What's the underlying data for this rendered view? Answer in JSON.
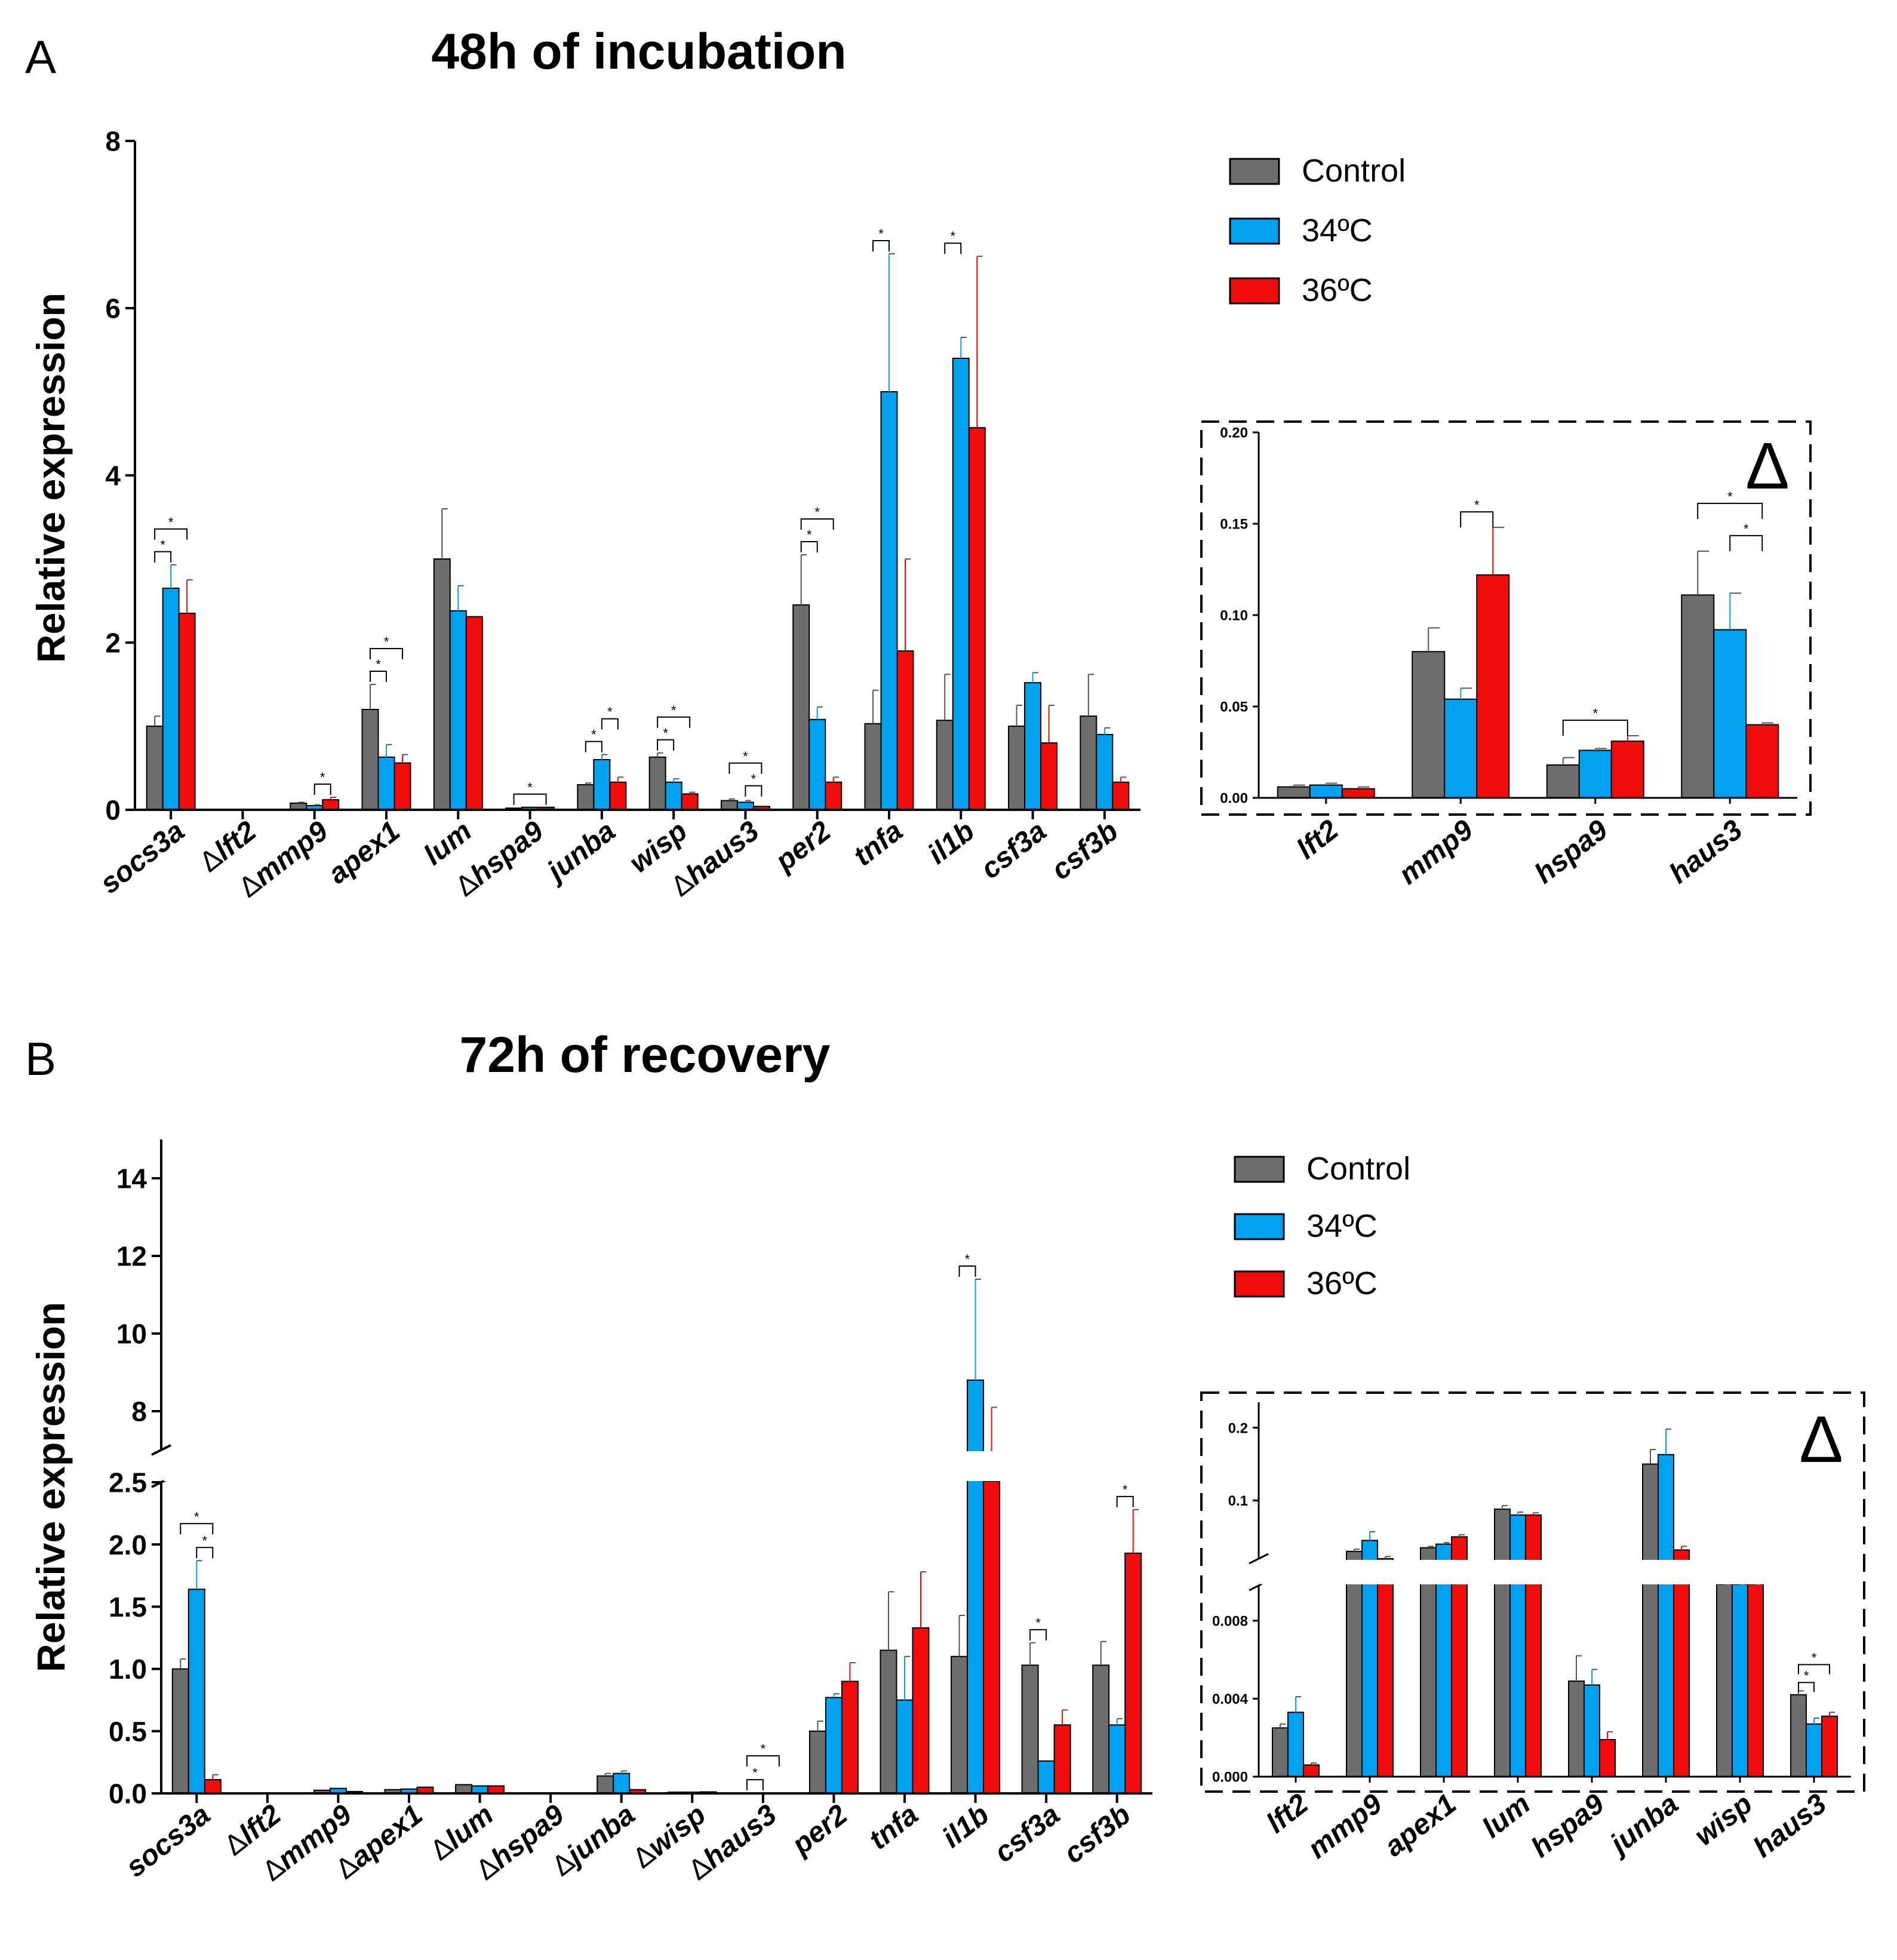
{
  "colors": {
    "control": "#6d6d6d",
    "c34": "#00a2f0",
    "c36": "#f10c0c",
    "axis": "#000000"
  },
  "legend": [
    {
      "key": "control",
      "label": "Control"
    },
    {
      "key": "c34",
      "label": "34ºC"
    },
    {
      "key": "c36",
      "label": "36ºC"
    }
  ],
  "chart_data": [
    {
      "id": "A_main",
      "panel": "A",
      "title": "48h of incubation",
      "type": "bar",
      "ylabel": "Relative expression",
      "ylim": [
        0,
        8
      ],
      "yticks": [
        0,
        2,
        4,
        6,
        8
      ],
      "categories": [
        {
          "label": "socs3a",
          "delta": false
        },
        {
          "label": "lft2",
          "delta": true
        },
        {
          "label": "mmp9",
          "delta": true
        },
        {
          "label": "apex1",
          "delta": false
        },
        {
          "label": "lum",
          "delta": false
        },
        {
          "label": "hspa9",
          "delta": true
        },
        {
          "label": "junba",
          "delta": false
        },
        {
          "label": "wisp",
          "delta": false
        },
        {
          "label": "haus3",
          "delta": true
        },
        {
          "label": "per2",
          "delta": false
        },
        {
          "label": "tnfa",
          "delta": false
        },
        {
          "label": "il1b",
          "delta": false
        },
        {
          "label": "csf3a",
          "delta": false
        },
        {
          "label": "csf3b",
          "delta": false
        }
      ],
      "series": [
        {
          "name": "Control",
          "key": "control",
          "values": [
            1.0,
            0.006,
            0.08,
            1.2,
            3.0,
            0.02,
            0.3,
            0.63,
            0.11,
            2.45,
            1.03,
            1.07,
            1.0,
            1.12
          ],
          "errors": [
            0.12,
            0.0,
            0.01,
            0.3,
            0.6,
            0.0,
            0.02,
            0.05,
            0.02,
            0.6,
            0.4,
            0.55,
            0.25,
            0.5
          ]
        },
        {
          "name": "34ºC",
          "key": "c34",
          "values": [
            2.65,
            0.007,
            0.05,
            0.63,
            2.38,
            0.03,
            0.6,
            0.33,
            0.09,
            1.08,
            5.0,
            5.4,
            1.52,
            0.9
          ],
          "errors": [
            0.28,
            0.0,
            0.01,
            0.15,
            0.3,
            0.0,
            0.06,
            0.04,
            0.02,
            0.15,
            1.65,
            0.25,
            0.12,
            0.08
          ]
        },
        {
          "name": "36ºC",
          "key": "c36",
          "values": [
            2.35,
            0.005,
            0.12,
            0.56,
            2.31,
            0.03,
            0.33,
            0.19,
            0.04,
            0.33,
            1.9,
            4.57,
            0.8,
            0.33
          ],
          "errors": [
            0.4,
            0.0,
            0.03,
            0.1,
            0.0,
            0.0,
            0.06,
            0.02,
            0.0,
            0.06,
            1.1,
            2.05,
            0.45,
            0.06
          ]
        }
      ],
      "significance": [
        {
          "cat": 0,
          "pair": "control-c34",
          "level": 1
        },
        {
          "cat": 0,
          "pair": "control-c36",
          "level": 2
        },
        {
          "cat": 2,
          "pair": "c34-c36",
          "level": 1
        },
        {
          "cat": 3,
          "pair": "control-c34",
          "level": 1
        },
        {
          "cat": 3,
          "pair": "control-c36",
          "level": 2
        },
        {
          "cat": 5,
          "pair": "control-c36",
          "level": 1
        },
        {
          "cat": 6,
          "pair": "control-c34",
          "level": 1
        },
        {
          "cat": 6,
          "pair": "c34-c36",
          "level": 2
        },
        {
          "cat": 7,
          "pair": "control-c34",
          "level": 1
        },
        {
          "cat": 7,
          "pair": "control-c36",
          "level": 2
        },
        {
          "cat": 8,
          "pair": "c34-c36",
          "level": 1
        },
        {
          "cat": 8,
          "pair": "control-c36",
          "level": 2
        },
        {
          "cat": 9,
          "pair": "control-c34",
          "level": 1
        },
        {
          "cat": 9,
          "pair": "control-c36",
          "level": 2
        },
        {
          "cat": 10,
          "pair": "control-c34",
          "level": 1
        },
        {
          "cat": 11,
          "pair": "control-c34",
          "level": 1
        }
      ],
      "sig_symbol": "*"
    },
    {
      "id": "A_inset",
      "panel": "A",
      "type": "bar",
      "delta_symbol": "Δ",
      "ylim": [
        0,
        0.2
      ],
      "yticks": [
        "0.00",
        "0.05",
        "0.10",
        "0.15",
        "0.20"
      ],
      "categories": [
        "lft2",
        "mmp9",
        "hspa9",
        "haus3"
      ],
      "series": [
        {
          "name": "Control",
          "key": "control",
          "values": [
            0.006,
            0.08,
            0.018,
            0.111
          ],
          "errors": [
            0.001,
            0.013,
            0.004,
            0.024
          ]
        },
        {
          "name": "34ºC",
          "key": "c34",
          "values": [
            0.007,
            0.054,
            0.026,
            0.092
          ],
          "errors": [
            0.001,
            0.006,
            0.001,
            0.02
          ]
        },
        {
          "name": "36ºC",
          "key": "c36",
          "values": [
            0.005,
            0.122,
            0.031,
            0.04
          ],
          "errors": [
            0.001,
            0.026,
            0.003,
            0.001
          ]
        }
      ],
      "significance": [
        {
          "cat": 1,
          "pair": "c34-c36",
          "level": 1
        },
        {
          "cat": 2,
          "pair": "control-c36",
          "level": 1
        },
        {
          "cat": 3,
          "pair": "c34-c36",
          "level": 1
        },
        {
          "cat": 3,
          "pair": "control-c36",
          "level": 2
        }
      ],
      "sig_symbol": "*"
    },
    {
      "id": "B_main",
      "panel": "B",
      "title": "72h of recovery",
      "type": "bar",
      "ylabel": "Relative expression",
      "axis_break": {
        "lower": [
          0,
          2.5
        ],
        "upper": [
          7,
          15
        ]
      },
      "yticks_lower": [
        "0.0",
        "0.5",
        "1.0",
        "1.5",
        "2.0",
        "2.5"
      ],
      "yticks_upper": [
        "8",
        "10",
        "12",
        "14"
      ],
      "categories": [
        {
          "label": "socs3a",
          "delta": false
        },
        {
          "label": "lft2",
          "delta": true
        },
        {
          "label": "mmp9",
          "delta": true
        },
        {
          "label": "apex1",
          "delta": true
        },
        {
          "label": "lum",
          "delta": true
        },
        {
          "label": "hspa9",
          "delta": true
        },
        {
          "label": "junba",
          "delta": true
        },
        {
          "label": "wisp",
          "delta": true
        },
        {
          "label": "haus3",
          "delta": true
        },
        {
          "label": "per2",
          "delta": false
        },
        {
          "label": "tnfa",
          "delta": false
        },
        {
          "label": "il1b",
          "delta": false
        },
        {
          "label": "csf3a",
          "delta": false
        },
        {
          "label": "csf3b",
          "delta": false
        }
      ],
      "series": [
        {
          "name": "Control",
          "key": "control",
          "values": [
            1.0,
            0.003,
            0.025,
            0.03,
            0.07,
            0.005,
            0.14,
            0.01,
            0.004,
            0.5,
            1.15,
            1.1,
            1.03,
            1.03
          ],
          "errors": [
            0.08,
            0.0,
            0.0,
            0.0,
            0.0,
            0.0,
            0.02,
            0.0,
            0.0,
            0.08,
            0.47,
            0.33,
            0.18,
            0.19
          ]
        },
        {
          "name": "34ºC",
          "key": "c34",
          "values": [
            1.64,
            0.003,
            0.04,
            0.035,
            0.06,
            0.005,
            0.16,
            0.01,
            0.003,
            0.77,
            0.75,
            8.8,
            0.26,
            0.55
          ],
          "errors": [
            0.23,
            0.0,
            0.0,
            0.0,
            0.0,
            0.0,
            0.02,
            0.0,
            0.0,
            0.03,
            0.35,
            2.6,
            0.0,
            0.05
          ]
        },
        {
          "name": "36ºC",
          "key": "c36",
          "values": [
            0.11,
            0.001,
            0.015,
            0.05,
            0.06,
            0.002,
            0.03,
            0.012,
            0.003,
            0.9,
            1.33,
            5.6,
            0.55,
            1.93
          ],
          "errors": [
            0.04,
            0.0,
            0.0,
            0.0,
            0.0,
            0.0,
            0.0,
            0.0,
            0.0,
            0.15,
            0.45,
            2.5,
            0.12,
            0.35
          ]
        }
      ],
      "significance": [
        {
          "cat": 0,
          "pair": "c34-c36",
          "level": 1
        },
        {
          "cat": 0,
          "pair": "control-c36",
          "level": 2
        },
        {
          "cat": 8,
          "pair": "control-c34",
          "level": 1
        },
        {
          "cat": 8,
          "pair": "control-c36",
          "level": 2
        },
        {
          "cat": 11,
          "pair": "control-c34",
          "level": 1
        },
        {
          "cat": 12,
          "pair": "control-c34",
          "level": 1
        },
        {
          "cat": 13,
          "pair": "c34-c36",
          "level": 1
        }
      ],
      "sig_symbol": "*"
    },
    {
      "id": "B_inset",
      "panel": "B",
      "type": "bar",
      "delta_symbol": "Δ",
      "axis_break": {
        "lower": [
          0,
          0.0098
        ],
        "upper": [
          0.02,
          0.235
        ]
      },
      "yticks_lower": [
        "0.000",
        "0.004",
        "0.008"
      ],
      "yticks_upper": [
        "0.1",
        "0.2"
      ],
      "categories": [
        "lft2",
        "mmp9",
        "apex1",
        "lum",
        "hspa9",
        "junba",
        "wisp",
        "haus3"
      ],
      "series": [
        {
          "name": "Control",
          "key": "control",
          "values": [
            0.0025,
            0.03,
            0.035,
            0.088,
            0.0049,
            0.15,
            0.01,
            0.0042
          ],
          "errors": [
            0.0002,
            0.003,
            0.002,
            0.005,
            0.0013,
            0.02,
            0.001,
            0.0002
          ]
        },
        {
          "name": "34ºC",
          "key": "c34",
          "values": [
            0.0033,
            0.045,
            0.04,
            0.08,
            0.0047,
            0.163,
            0.013,
            0.0027
          ],
          "errors": [
            0.0008,
            0.012,
            0.002,
            0.004,
            0.0008,
            0.035,
            0.001,
            0.0003
          ]
        },
        {
          "name": "36ºC",
          "key": "c36",
          "values": [
            0.0006,
            0.02,
            0.05,
            0.08,
            0.0019,
            0.032,
            0.014,
            0.0031
          ],
          "errors": [
            0.0001,
            0.003,
            0.003,
            0.003,
            0.0004,
            0.005,
            0.001,
            0.0002
          ]
        }
      ],
      "significance": [
        {
          "cat": 7,
          "pair": "control-c34",
          "level": 1
        },
        {
          "cat": 7,
          "pair": "control-c36",
          "level": 2
        }
      ],
      "sig_symbol": "*"
    }
  ]
}
